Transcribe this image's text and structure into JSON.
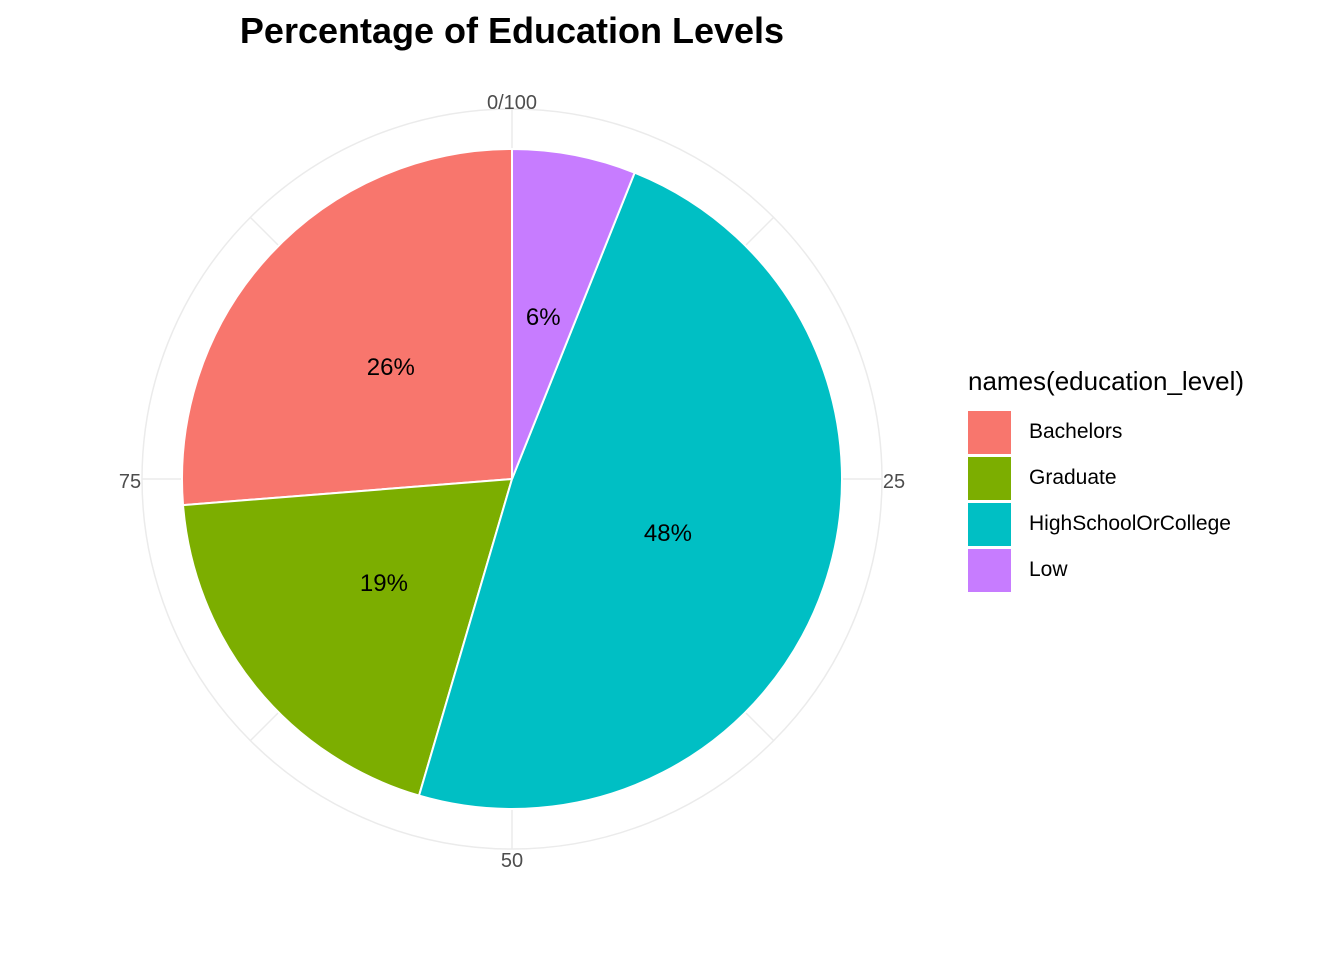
{
  "chart_data": {
    "type": "pie",
    "title": "Percentage of Education Levels",
    "legend_title": "names(education_level)",
    "legend_position": "right",
    "angle_ticks": [
      "0/100",
      "25",
      "50",
      "75"
    ],
    "grid": true,
    "slices": [
      {
        "name": "Bachelors",
        "value": 26,
        "label": "26%",
        "color": "#F8766D"
      },
      {
        "name": "Graduate",
        "value": 19,
        "label": "19%",
        "color": "#7CAE00"
      },
      {
        "name": "HighSchoolOrCollege",
        "value": 48,
        "label": "48%",
        "color": "#00BFC4"
      },
      {
        "name": "Low",
        "value": 6,
        "label": "6%",
        "color": "#C77CFF"
      }
    ]
  }
}
